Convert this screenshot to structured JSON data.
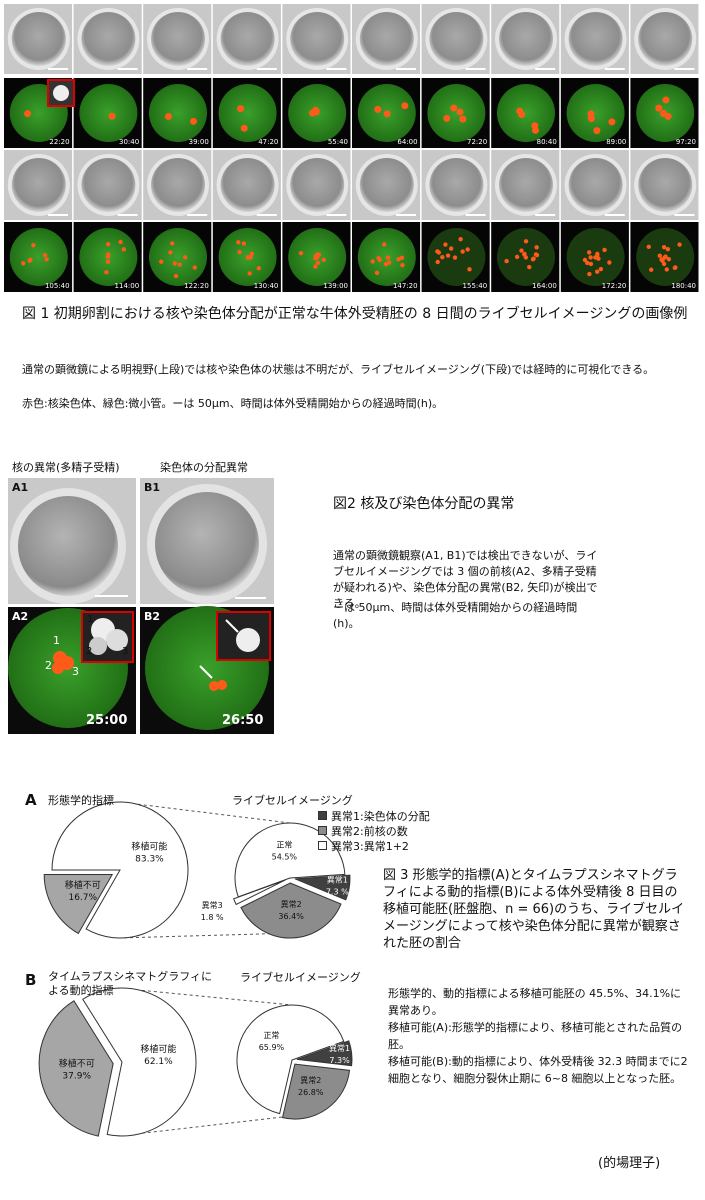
{
  "figure1": {
    "time_labels": [
      "22:20",
      "30:40",
      "39:00",
      "47:20",
      "55:40",
      "64:00",
      "72:20",
      "80:40",
      "89:00",
      "97:20",
      "105:40",
      "114:00",
      "122:20",
      "130:40",
      "139:00",
      "147:20",
      "155:40",
      "164:00",
      "172:20",
      "180:40"
    ],
    "caption": "図 1  初期卵割における核や染色体分配が正常な牛体外受精胚の 8 日間のライブセルイメージングの画像例",
    "notes": [
      "通常の顕微鏡による明視野(上段)では核や染色体の状態は不明だが、ライブセルイメージング(下段)では経時的に可視化できる。",
      "赤色:核染色体、緑色:微小管。ーは 50μm、時間は体外受精開始からの経過時間(h)。"
    ]
  },
  "figure2": {
    "column_titles": [
      "核の異常(多精子受精)",
      "染色体の分配異常"
    ],
    "panel_labels": [
      "A1",
      "B1",
      "A2",
      "B2"
    ],
    "markers": [
      "1",
      "2",
      "3"
    ],
    "times": [
      "25:00",
      "26:50"
    ],
    "caption": "図2  核及び染色体分配の異常",
    "notes": [
      "通常の顕微鏡観察(A1, B1)では検出できないが、ライブセルイメージングでは 3 個の前核(A2、多精子受精が疑われる)や、染色体分配の異常(B2, 矢印)が検出できる。",
      "ーは 50μm、時間は体外受精開始からの経過時間(h)。"
    ]
  },
  "figure3": {
    "legend": [
      {
        "name": "異常1:染色体の分配",
        "color": "#404040"
      },
      {
        "name": "異常2:前核の数",
        "color": "#8c8c8c"
      },
      {
        "name": "異常3:異常1+2",
        "color": "#ffffff"
      }
    ],
    "panels": [
      {
        "label": "A",
        "title": "形態学的指標",
        "subtitle": "ライブセルイメージング",
        "pies": [
          {
            "type": "pie",
            "categories": [
              "移植可能",
              "移植不可"
            ],
            "values": [
              83.3,
              16.7
            ],
            "value_labels": [
              "83.3%",
              "16.7%"
            ],
            "colors": [
              "#ffffff",
              "#a6a6a6"
            ]
          },
          {
            "type": "pie",
            "categories": [
              "正常",
              "異常1",
              "異常2",
              "異常3"
            ],
            "values": [
              54.5,
              7.3,
              36.4,
              1.8
            ],
            "value_labels": [
              "54.5%",
              "7.3 %",
              "36.4%",
              "1.8 %"
            ],
            "colors": [
              "#ffffff",
              "#404040",
              "#8c8c8c",
              "#ffffff"
            ]
          }
        ]
      },
      {
        "label": "B",
        "title": "タイムラプスシネマトグラフィによる動的指標",
        "subtitle": "ライブセルイメージング",
        "pies": [
          {
            "type": "pie",
            "categories": [
              "移植可能",
              "移植不可"
            ],
            "values": [
              62.1,
              37.9
            ],
            "value_labels": [
              "62.1%",
              "37.9%"
            ],
            "colors": [
              "#ffffff",
              "#a6a6a6"
            ]
          },
          {
            "type": "pie",
            "categories": [
              "正常",
              "異常1",
              "異常2"
            ],
            "values": [
              65.9,
              7.3,
              26.8
            ],
            "value_labels": [
              "65.9%",
              "7.3%",
              "26.8%"
            ],
            "colors": [
              "#ffffff",
              "#404040",
              "#8c8c8c"
            ]
          }
        ]
      }
    ],
    "caption": "図 3  形態学的指標(A)とタイムラプスシネマトグラフィによる動的指標(B)による体外受精後 8 日目の移植可能胚(胚盤胞、n = 66)のうち、ライブセルイメージングによって核や染色体分配に異常が観察された胚の割合",
    "notes": [
      "形態学的、動的指標による移植可能胚の 45.5%、34.1%に異常あり。",
      "移植可能(A):形態学的指標により、移植可能とされた品質の胚。",
      "移植可能(B):動的指標により、体外受精後 32.3 時間までに2細胞となり、細胞分裂休止期に 6~8 細胞以上となった胚。"
    ]
  },
  "author": "(的場理子)"
}
